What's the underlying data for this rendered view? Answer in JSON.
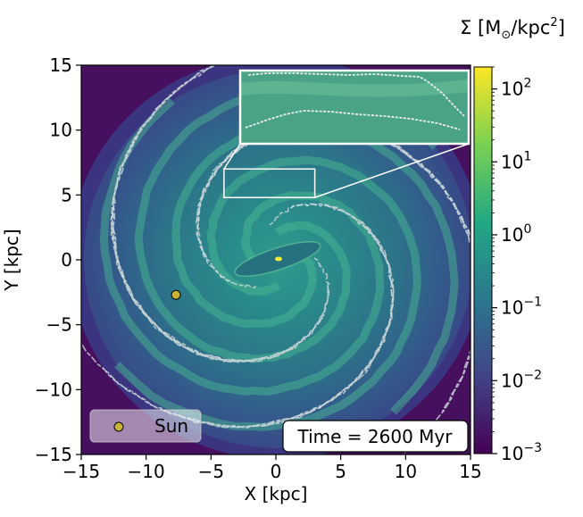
{
  "chart_data": {
    "type": "heatmap",
    "colorbar_label": "Σ [M⊙/kpc²]",
    "colorbar_label_parts": {
      "prefix": "Σ [M",
      "sub": "⊙",
      "mid": "/kpc",
      "sup": "2",
      "suffix": "]"
    },
    "colorbar": {
      "scale": "log",
      "range": [
        0.001,
        200
      ],
      "ticks": [
        {
          "value": 100,
          "base": "10",
          "exp": "2"
        },
        {
          "value": 10,
          "base": "10",
          "exp": "1"
        },
        {
          "value": 1,
          "base": "10",
          "exp": "0"
        },
        {
          "value": 0.1,
          "base": "10",
          "exp": "−1"
        },
        {
          "value": 0.01,
          "base": "10",
          "exp": "−2"
        },
        {
          "value": 0.001,
          "base": "10",
          "exp": "−3"
        }
      ],
      "colormap": [
        "#440154",
        "#414487",
        "#2a788e",
        "#22a884",
        "#7ad151",
        "#fde725"
      ]
    },
    "xlabel": "X [kpc]",
    "ylabel": "Y [kpc]",
    "xlim": [
      -15,
      15
    ],
    "ylim": [
      -15,
      15
    ],
    "xticks": [
      -15,
      -10,
      -5,
      0,
      5,
      10,
      15
    ],
    "yticks": [
      -15,
      -10,
      -5,
      0,
      5,
      10,
      15
    ],
    "xtick_labels": [
      "−15",
      "−10",
      "−5",
      "0",
      "5",
      "10",
      "15"
    ],
    "ytick_labels": [
      "−15",
      "−10",
      "−5",
      "0",
      "5",
      "10",
      "15"
    ],
    "sun": {
      "x": -7.7,
      "y": -2.7,
      "color": "#c8b432"
    },
    "legend": {
      "entries": [
        "Sun"
      ],
      "placement": "lower-left"
    },
    "annotation": "Time = 2600 Myr",
    "zoom_box": {
      "x": [
        -4,
        3
      ],
      "y": [
        4.8,
        7
      ]
    },
    "inset": {
      "placement": "top-right",
      "shows": "zoom of the boxed region"
    }
  }
}
